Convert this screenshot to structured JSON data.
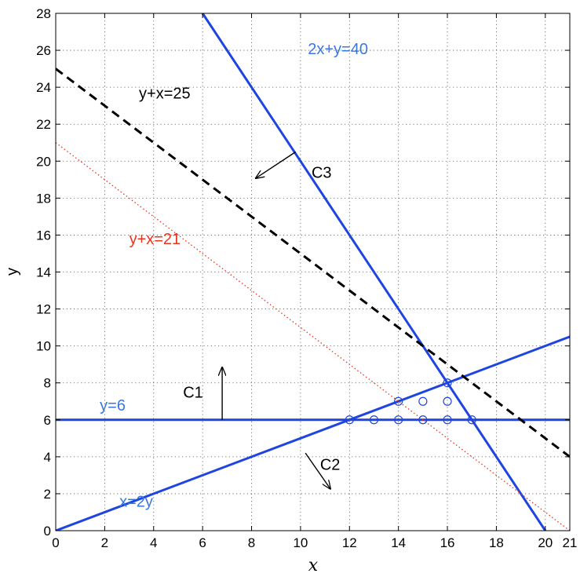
{
  "chart_data": {
    "type": "line",
    "xlabel": "x",
    "ylabel": "y",
    "xlim": [
      0,
      21
    ],
    "ylim": [
      0,
      28
    ],
    "xticks": [
      0,
      2,
      4,
      6,
      8,
      10,
      12,
      14,
      16,
      18,
      20,
      21
    ],
    "yticks": [
      0,
      2,
      4,
      6,
      8,
      10,
      12,
      14,
      16,
      18,
      20,
      22,
      24,
      26,
      28
    ],
    "grid": true,
    "colors": {
      "blue": "#1f45e0",
      "black": "#000000",
      "red": "#e8351f",
      "label_blue": "#3a78e0",
      "label_red": "#e8351f",
      "points": "#1f45e0"
    },
    "series": [
      {
        "name": "2x+y=40",
        "style": "solid",
        "color": "#1f45e0",
        "x": [
          6,
          20
        ],
        "y": [
          28,
          0
        ]
      },
      {
        "name": "y=6",
        "style": "solid",
        "color": "#1f45e0",
        "x": [
          0,
          21
        ],
        "y": [
          6,
          6
        ]
      },
      {
        "name": "x=2y",
        "style": "solid",
        "color": "#1f45e0",
        "x": [
          0,
          21
        ],
        "y": [
          0,
          10.5
        ]
      },
      {
        "name": "y+x=25",
        "style": "dashed",
        "color": "#000000",
        "x": [
          0,
          21
        ],
        "y": [
          25,
          4
        ]
      },
      {
        "name": "y+x=21",
        "style": "dotted",
        "color": "#e8351f",
        "x": [
          0,
          21
        ],
        "y": [
          21,
          0
        ]
      }
    ],
    "points": [
      {
        "x": 12,
        "y": 6
      },
      {
        "x": 13,
        "y": 6
      },
      {
        "x": 14,
        "y": 6
      },
      {
        "x": 15,
        "y": 6
      },
      {
        "x": 16,
        "y": 6
      },
      {
        "x": 17,
        "y": 6
      },
      {
        "x": 14,
        "y": 7
      },
      {
        "x": 15,
        "y": 7
      },
      {
        "x": 16,
        "y": 7
      },
      {
        "x": 16,
        "y": 8
      }
    ],
    "annotations": [
      {
        "text": "2x+y=40",
        "x": 10.3,
        "y": 25.8,
        "color": "#3a78e0"
      },
      {
        "text": "y+x=25",
        "x": 3.4,
        "y": 23.4,
        "color": "#000000"
      },
      {
        "text": "y+x=21",
        "x": 3.0,
        "y": 15.5,
        "color": "#e8351f"
      },
      {
        "text": "y=6",
        "x": 1.8,
        "y": 6.5,
        "color": "#3a78e0"
      },
      {
        "text": "x=2y",
        "x": 2.6,
        "y": 1.3,
        "color": "#3a78e0"
      },
      {
        "text": "C1",
        "x": 5.2,
        "y": 7.2,
        "color": "#000000"
      },
      {
        "text": "C2",
        "x": 10.8,
        "y": 3.3,
        "color": "#000000"
      },
      {
        "text": "C3",
        "x": 10.45,
        "y": 19.1,
        "color": "#000000"
      }
    ],
    "arrows": [
      {
        "label": "C1",
        "from": [
          6.8,
          6.0
        ],
        "to": [
          6.8,
          8.8
        ]
      },
      {
        "label": "C2",
        "from": [
          10.2,
          4.2
        ],
        "to": [
          11.2,
          2.3
        ]
      },
      {
        "label": "C3",
        "from": [
          9.8,
          20.5
        ],
        "to": [
          8.2,
          19.1
        ]
      }
    ]
  }
}
